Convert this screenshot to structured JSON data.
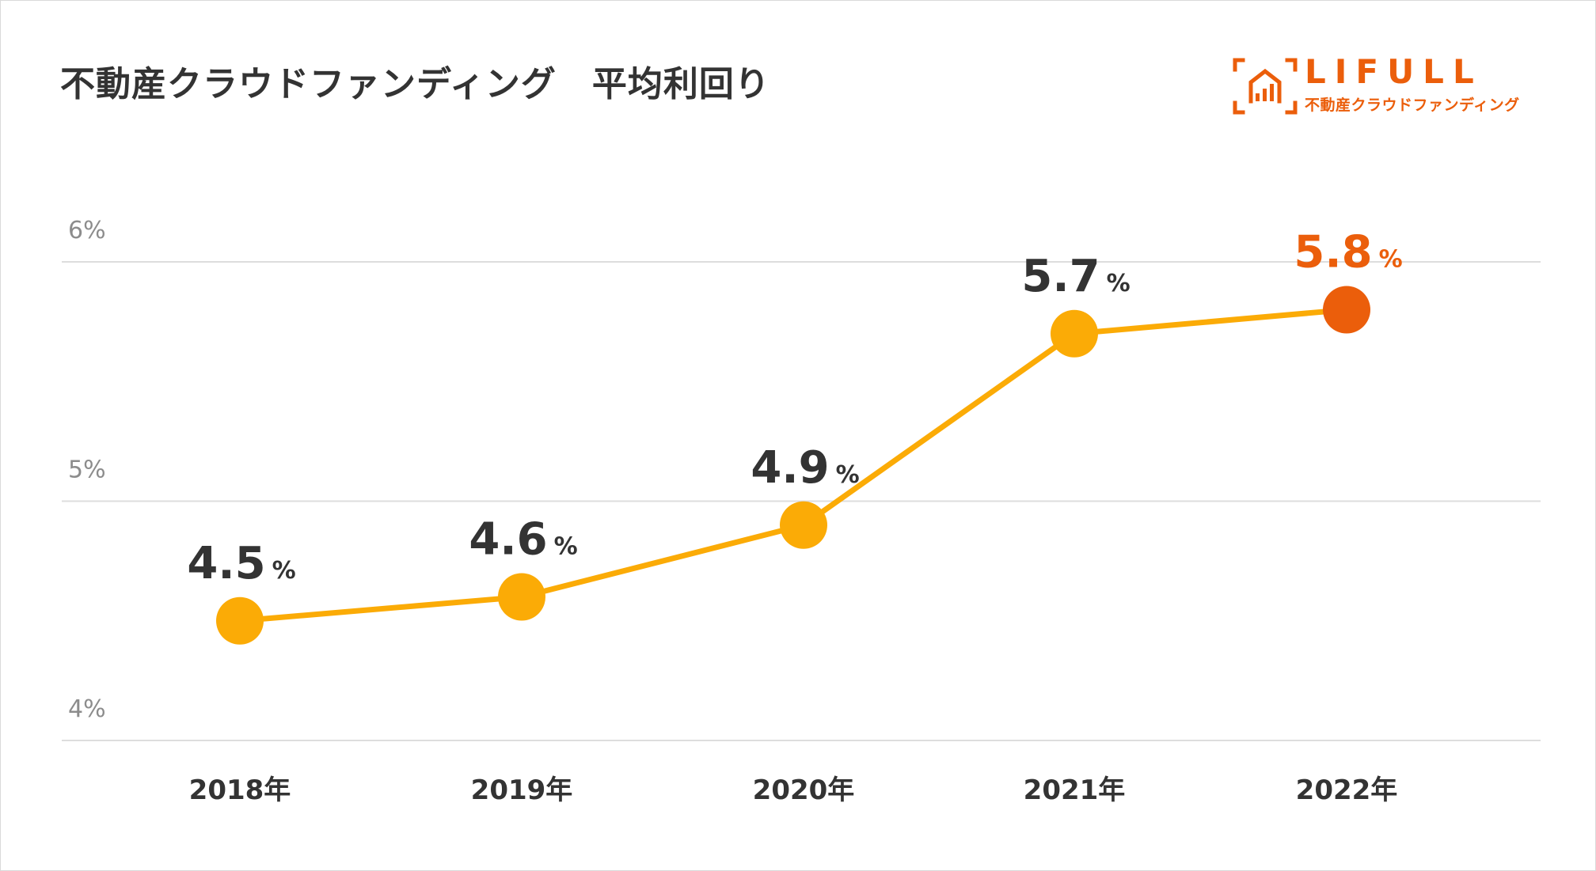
{
  "title": "不動産クラウドファンディング　平均利回り",
  "logo": {
    "name": "LIFULL",
    "subtitle": "不動産クラウドファンディング"
  },
  "colors": {
    "line": "#fbab06",
    "point": "#fbab06",
    "highlight": "#eb5e0b",
    "grid": "#dddddd",
    "text": "#333333",
    "axis_text": "#8c8c8c"
  },
  "chart_data": {
    "type": "line",
    "title": "不動産クラウドファンディング　平均利回り",
    "categories": [
      "2018年",
      "2019年",
      "2020年",
      "2021年",
      "2022年"
    ],
    "series": [
      {
        "values": [
          4.5,
          4.6,
          4.9,
          5.7,
          5.8
        ]
      }
    ],
    "data_labels": [
      "4.5",
      "4.6",
      "4.9",
      "5.7",
      "5.8"
    ],
    "data_label_unit": "%",
    "highlight_index": 4,
    "yticks": [
      4,
      5,
      6
    ],
    "ytick_labels": [
      "4%",
      "5%",
      "6%"
    ],
    "ylim": [
      4,
      6
    ],
    "grid": true,
    "legend": "none",
    "xlabel": "",
    "ylabel": ""
  }
}
